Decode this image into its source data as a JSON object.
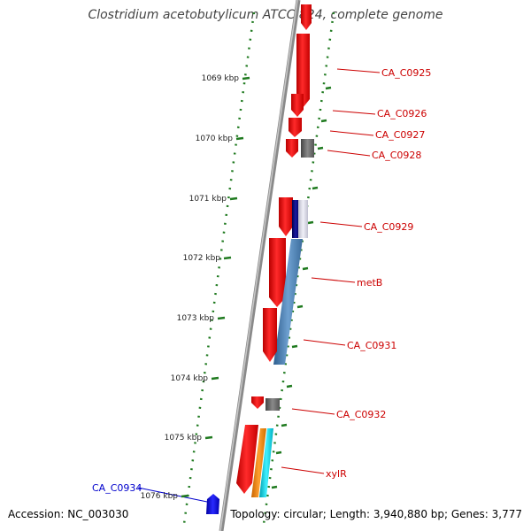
{
  "title": "Clostridium acetobutylicum ATCC 824, complete genome",
  "footer": {
    "accession": "Accession: NC_003030",
    "topology": "Topology: circular; Length: 3,940,880 bp; Genes: 3,777"
  },
  "colors": {
    "backbone": "#8a8a8a",
    "forward_gene": "#ee1111",
    "reverse_gene": "#1111ee",
    "tick": "#1f7a1f",
    "gene_label": "#cc0000",
    "reverse_label": "#0000cc"
  },
  "ticks": [
    {
      "label": "1069 kbp",
      "kbp": 1069
    },
    {
      "label": "1070 kbp",
      "kbp": 1070
    },
    {
      "label": "1071 kbp",
      "kbp": 1071
    },
    {
      "label": "1072 kbp",
      "kbp": 1072
    },
    {
      "label": "1073 kbp",
      "kbp": 1073
    },
    {
      "label": "1074 kbp",
      "kbp": 1074
    },
    {
      "label": "1075 kbp",
      "kbp": 1075
    },
    {
      "label": "1076 kbp",
      "kbp": 1076
    }
  ],
  "gene_labels": [
    {
      "text": "CA_C0925",
      "strand": "forward"
    },
    {
      "text": "CA_C0926",
      "strand": "forward"
    },
    {
      "text": "CA_C0927",
      "strand": "forward"
    },
    {
      "text": "CA_C0928",
      "strand": "forward"
    },
    {
      "text": "CA_C0929",
      "strand": "forward"
    },
    {
      "text": "metB",
      "strand": "forward"
    },
    {
      "text": "CA_C0931",
      "strand": "forward"
    },
    {
      "text": "CA_C0932",
      "strand": "forward"
    },
    {
      "text": "xylR",
      "strand": "forward"
    },
    {
      "text": "CA_C0934",
      "strand": "reverse"
    }
  ]
}
